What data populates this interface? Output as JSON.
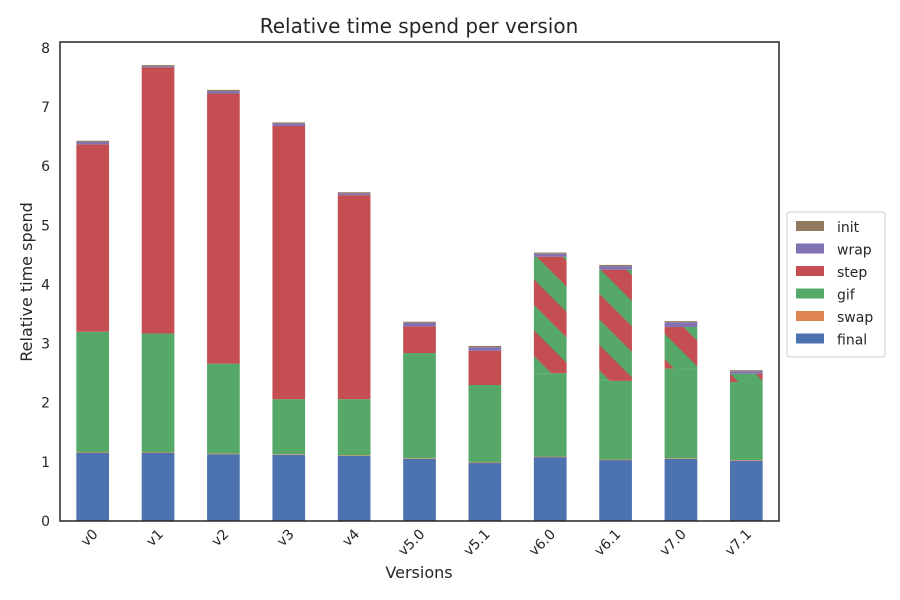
{
  "chart_data": {
    "type": "bar",
    "stacked": true,
    "title": "Relative time spend per version",
    "xlabel": "Versions",
    "ylabel": "Relative time spend",
    "ylim": [
      0,
      8.1
    ],
    "yticks": [
      0,
      1,
      2,
      3,
      4,
      5,
      6,
      7,
      8
    ],
    "categories": [
      "v0",
      "v1",
      "v2",
      "v3",
      "v4",
      "v5.0",
      "v5.1",
      "v6.0",
      "v6.1",
      "v7.0",
      "v7.1"
    ],
    "grid": false,
    "legend_position": "right",
    "series": [
      {
        "name": "final",
        "color": "#4c72b0",
        "values": [
          1.15,
          1.15,
          1.13,
          1.12,
          1.1,
          1.05,
          0.98,
          1.08,
          1.03,
          1.05,
          1.02
        ]
      },
      {
        "name": "swap",
        "color": "#dd8452",
        "values": [
          0.01,
          0.01,
          0.01,
          0.01,
          0.01,
          0.01,
          0.01,
          0.01,
          0.01,
          0.01,
          0.01
        ]
      },
      {
        "name": "gif",
        "color": "#55a868",
        "values": [
          2.04,
          2.01,
          1.52,
          0.93,
          0.95,
          1.78,
          1.31,
          1.41,
          1.33,
          1.52,
          1.32
        ]
      },
      {
        "name": "step",
        "color": "#c44e52",
        "values": [
          3.17,
          4.5,
          4.57,
          4.62,
          3.45,
          0.45,
          0.58,
          1.97,
          1.88,
          0.7,
          0.14
        ]
      },
      {
        "name": "wrap",
        "color": "#8172b3",
        "values": [
          0.04,
          0.02,
          0.04,
          0.04,
          0.03,
          0.06,
          0.06,
          0.05,
          0.06,
          0.08,
          0.04
        ]
      },
      {
        "name": "init",
        "color": "#937860",
        "values": [
          0.02,
          0.02,
          0.02,
          0.02,
          0.02,
          0.02,
          0.02,
          0.02,
          0.02,
          0.02,
          0.02
        ]
      }
    ],
    "legend_order": [
      "init",
      "wrap",
      "step",
      "gif",
      "swap",
      "final"
    ],
    "hatched_bars": [
      "v6.0",
      "v6.1",
      "v7.0",
      "v7.1"
    ]
  }
}
